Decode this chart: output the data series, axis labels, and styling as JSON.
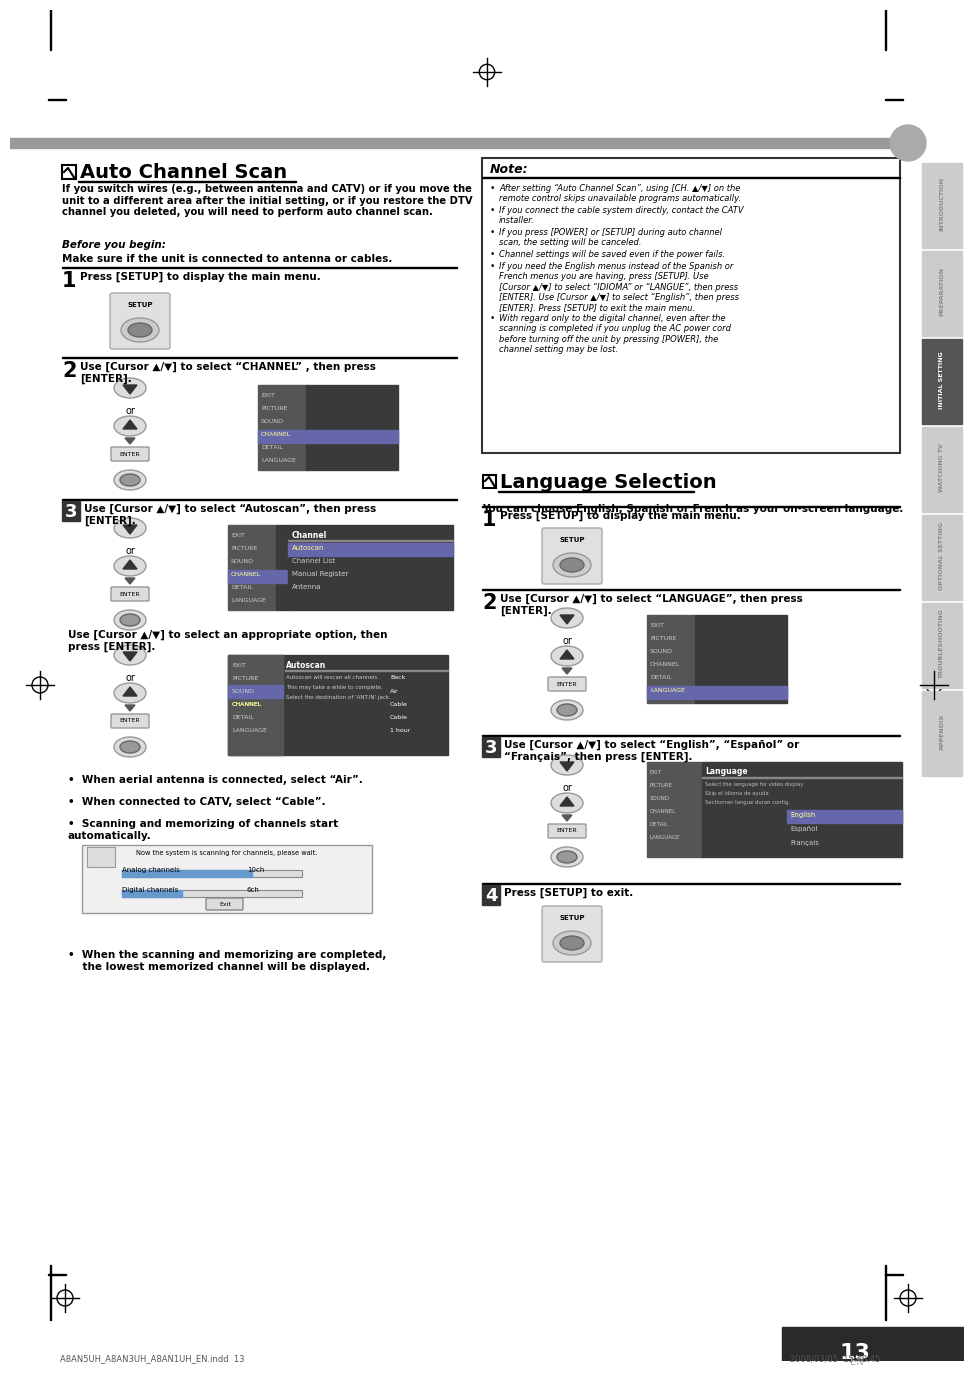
{
  "page_bg": "#ffffff",
  "page_width": 9.54,
  "page_height": 13.51,
  "dpi": 100,
  "section1_title": "Auto Channel Scan",
  "before_begin_label": "Before you begin:",
  "before_begin_text": "Make sure if the unit is connected to antenna or cables.",
  "note_title": "Note:",
  "note_bullets": [
    "After setting “Auto Channel Scan”, using [CH. ▲/▼] on the\nremote control skips unavailable programs automatically.",
    "If you connect the cable system directly, contact the CATV\ninstaller.",
    "If you press [POWER] or [SETUP] during auto channel\nscan, the setting will be canceled.",
    "Channel settings will be saved even if the power fails.",
    "If you need the English menus instead of the Spanish or\nFrench menus you are having, press [SETUP]. Use\n[Cursor ▲/▼] to select “IDIOMA” or “LANGUE”, then press\n[ENTER]. Use [Cursor ▲/▼] to select “English”, then press\n[ENTER]. Press [SETUP] to exit the main menu.",
    "With regard only to the digital channel, even after the\nscanning is completed if you unplug the AC power cord\nbefore turning off the unit by pressing [POWER], the\nchannel setting may be lost."
  ],
  "bullets_left": [
    "When aerial antenna is connected, select “Air”.",
    "When connected to CATV, select “Cable”.",
    "Scanning and memorizing of channels start\nautomatically."
  ],
  "section2_title": "Language Selection",
  "section2_intro": "You can choose English, Spanish or French as your on-screen language.",
  "sidebar_labels": [
    "INTRODUCTION",
    "PREPARATION",
    "INITIAL SETTING",
    "WATCHING TV",
    "OPTIONAL SETTING",
    "TROUBLESHOOTING",
    "APPENDIX"
  ],
  "tab_colors": [
    "#cccccc",
    "#cccccc",
    "#555555",
    "#cccccc",
    "#cccccc",
    "#cccccc",
    "#cccccc"
  ],
  "page_number": "13",
  "footer_text": "EN",
  "bottom_file": "A8AN5UH_A8AN3UH_A8AN1UH_EN.indd  13",
  "bottom_date": "2008/03/05  15:48:45",
  "gray_bar_color": "#999999"
}
